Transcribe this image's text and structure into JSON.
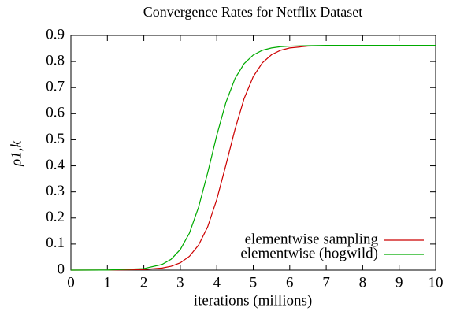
{
  "chart_data": {
    "type": "line",
    "title": "Convergence Rates for Netflix Dataset",
    "x_label": "iterations (millions)",
    "y_label": "ρ1,k",
    "x": [
      0,
      1,
      2,
      2.5,
      2.75,
      3,
      3.25,
      3.5,
      3.75,
      4,
      4.25,
      4.5,
      4.75,
      5,
      5.25,
      5.5,
      5.75,
      6,
      6.5,
      7,
      8,
      9,
      10
    ],
    "series": [
      {
        "name": "elementwise sampling",
        "color": "#cc0000",
        "values": [
          0,
          0.0002,
          0.0022,
          0.0079,
          0.015,
          0.028,
          0.0529,
          0.0958,
          0.166,
          0.271,
          0.403,
          0.54,
          0.658,
          0.742,
          0.795,
          0.826,
          0.843,
          0.852,
          0.859,
          0.861,
          0.862,
          0.862,
          0.862
        ]
      },
      {
        "name": "elementwise (hogwild)",
        "color": "#00aa00",
        "values": [
          0,
          0.0004,
          0.0058,
          0.0219,
          0.042,
          0.079,
          0.142,
          0.241,
          0.373,
          0.517,
          0.643,
          0.735,
          0.792,
          0.825,
          0.843,
          0.852,
          0.857,
          0.859,
          0.861,
          0.862,
          0.862,
          0.862,
          0.862
        ]
      }
    ],
    "xlim": [
      0,
      10
    ],
    "xticks": [
      0,
      1,
      2,
      3,
      4,
      5,
      6,
      7,
      8,
      9,
      10
    ],
    "ylim": [
      0,
      0.9
    ],
    "yticks": [
      0,
      0.1,
      0.2,
      0.3,
      0.4,
      0.5,
      0.6,
      0.7,
      0.8,
      0.9
    ],
    "legend": "lower right",
    "grid": false
  }
}
